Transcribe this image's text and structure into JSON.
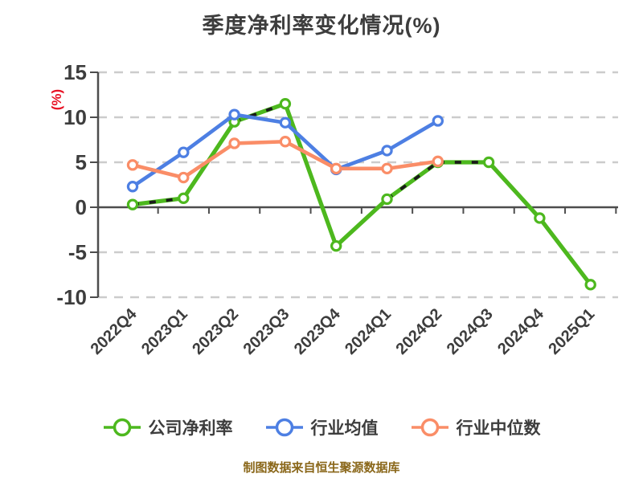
{
  "title": "季度净利率变化情况(%)",
  "footer": "制图数据来自恒生聚源数据库",
  "colors": {
    "background": "#FFFFFF",
    "title_text": "#3D3D3D",
    "axis_text": "#3D3D3D",
    "axis_line": "#4D4D4D",
    "grid_line": "#CCCCCC",
    "y_unit_label": "#E81123",
    "footer_text": "#8A671A",
    "marker_fill": "#FFFFFF",
    "company_dash_overlay": "#1A1A1A"
  },
  "chart_data": {
    "type": "line",
    "title": "季度净利率变化情况(%)",
    "xlabel": "",
    "ylabel": "(%)",
    "ylim": [
      -10,
      15
    ],
    "yticks": [
      15,
      10,
      5,
      0,
      -5,
      -10
    ],
    "grid": "horizontal-dashed",
    "legend_position": "bottom",
    "categories": [
      "2022Q4",
      "2023Q1",
      "2023Q2",
      "2023Q3",
      "2023Q4",
      "2024Q1",
      "2024Q2",
      "2024Q3",
      "2024Q4",
      "2025Q1"
    ],
    "series": [
      {
        "name": "公司净利率",
        "color": "#4DB81E",
        "dashed_overlay": true,
        "values": [
          0.3,
          1.0,
          9.5,
          11.5,
          -4.3,
          0.9,
          5.0,
          5.0,
          -1.2,
          -8.6
        ]
      },
      {
        "name": "行业均值",
        "color": "#4D7FE3",
        "dashed_overlay": false,
        "values": [
          2.3,
          6.1,
          10.3,
          9.4,
          4.2,
          6.3,
          9.6,
          null,
          null,
          null
        ]
      },
      {
        "name": "行业中位数",
        "color": "#FA8D67",
        "dashed_overlay": false,
        "values": [
          4.7,
          3.3,
          7.1,
          7.3,
          4.3,
          4.3,
          5.1,
          null,
          null,
          null
        ]
      }
    ]
  }
}
